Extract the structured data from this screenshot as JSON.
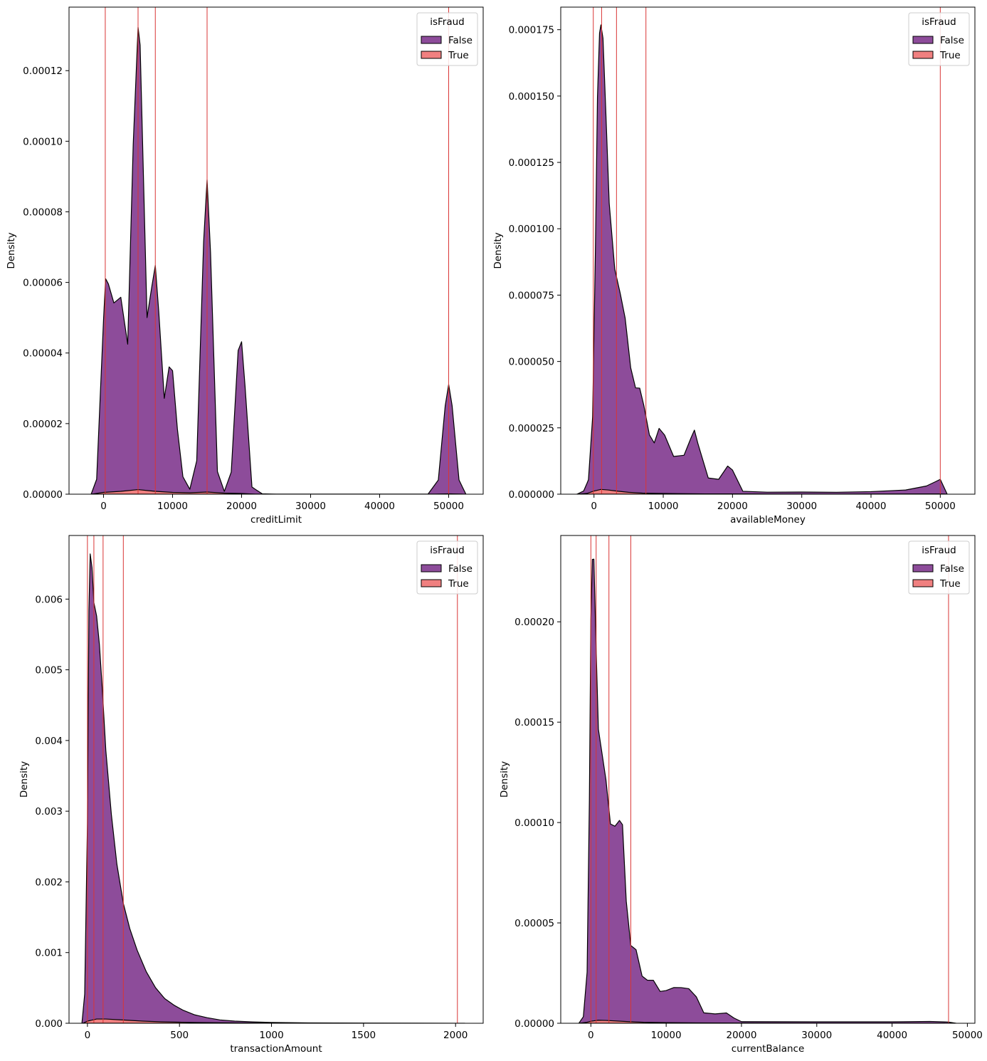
{
  "chart_data": [
    {
      "type": "area",
      "stacked": true,
      "xlabel": "creditLimit",
      "ylabel": "Density",
      "xlim": [
        -5000,
        55000
      ],
      "ylim": [
        0,
        0.000138
      ],
      "xticks": [
        0,
        10000,
        20000,
        30000,
        40000,
        50000
      ],
      "xtick_labels": [
        "0",
        "10000",
        "20000",
        "30000",
        "40000",
        "50000"
      ],
      "yticks": [
        0,
        2e-05,
        4e-05,
        6e-05,
        8e-05,
        0.0001,
        0.00012
      ],
      "ytick_labels": [
        "0.00000",
        "0.00002",
        "0.00004",
        "0.00006",
        "0.00008",
        "0.00010",
        "0.00012"
      ],
      "vlines": [
        250,
        5000,
        7500,
        15000,
        50000
      ],
      "legend": {
        "title": "isFraud",
        "placement": "top-right",
        "entries": [
          "False",
          "True"
        ]
      },
      "series": [
        {
          "name": "True",
          "x": [
            -1750,
            0,
            2500,
            5000,
            7500,
            10000,
            12500,
            15000,
            17500,
            20000,
            22000,
            48000,
            50000,
            52000
          ],
          "y": [
            0,
            5e-07,
            8e-07,
            1.3e-06,
            8e-07,
            5e-07,
            4e-07,
            6e-07,
            3e-07,
            2e-07,
            0,
            0,
            1e-07,
            0
          ]
        },
        {
          "name": "False",
          "x": [
            -1800,
            -1000,
            0,
            300,
            700,
            1500,
            2500,
            3500,
            4300,
            5000,
            5300,
            6300,
            7000,
            7500,
            8000,
            8800,
            9500,
            10000,
            10700,
            11500,
            12500,
            13500,
            14500,
            15000,
            15500,
            16500,
            17500,
            18500,
            19500,
            20000,
            20500,
            21500,
            23000,
            25000,
            47000,
            48500,
            49500,
            50000,
            50500,
            51500,
            52500
          ],
          "y": [
            0,
            4e-06,
            4.9e-05,
            6.05e-05,
            5.9e-05,
            5.35e-05,
            5.5e-05,
            4.15e-05,
            9.8e-05,
            0.000131,
            0.000126,
            4.9e-05,
            5.8e-05,
            6.4e-05,
            5.1e-05,
            2.65e-05,
            3.55e-05,
            3.45e-05,
            1.8e-05,
            4.5e-06,
            1e-06,
            9e-06,
            7.1e-05,
            8.85e-05,
            6.8e-05,
            6e-06,
            5e-07,
            6e-06,
            4.05e-05,
            4.3e-05,
            3.05e-05,
            2e-06,
            1e-07,
            0,
            0,
            4e-06,
            2.5e-05,
            3.1e-05,
            2.5e-05,
            4e-06,
            0
          ]
        }
      ]
    },
    {
      "type": "area",
      "stacked": true,
      "xlabel": "availableMoney",
      "ylabel": "Density",
      "xlim": [
        -4800,
        55000
      ],
      "ylim": [
        0,
        0.0001835
      ],
      "xticks": [
        0,
        10000,
        20000,
        30000,
        40000,
        50000
      ],
      "xtick_labels": [
        "0",
        "10000",
        "20000",
        "30000",
        "40000",
        "50000"
      ],
      "yticks": [
        0,
        2.5e-05,
        5e-05,
        7.5e-05,
        0.0001,
        0.000125,
        0.00015,
        0.000175
      ],
      "ytick_labels": [
        "0.000000",
        "0.000025",
        "0.000050",
        "0.000075",
        "0.000100",
        "0.000125",
        "0.000150",
        "0.000175"
      ],
      "vlines": [
        -100,
        1100,
        3250,
        7500,
        50000
      ],
      "legend": {
        "title": "isFraud",
        "placement": "top-right",
        "entries": [
          "False",
          "True"
        ]
      },
      "series": [
        {
          "name": "True",
          "x": [
            -2300,
            -1000,
            0,
            1000,
            2000,
            3500,
            5000,
            7000,
            9000,
            12000,
            16000,
            20000,
            30000,
            50000,
            51000
          ],
          "y": [
            0,
            3e-07,
            1.2e-06,
            1.8e-06,
            1.6e-06,
            1.1e-06,
            7e-07,
            4e-07,
            3e-07,
            2e-07,
            1e-07,
            1e-07,
            0,
            1e-07,
            0
          ]
        },
        {
          "name": "False",
          "x": [
            -2500,
            -1500,
            -800,
            -200,
            200,
            500,
            800,
            1000,
            1300,
            1700,
            2200,
            3000,
            3800,
            4500,
            5300,
            6000,
            6600,
            7200,
            8000,
            8700,
            9400,
            10200,
            11500,
            13000,
            14000,
            14500,
            15000,
            16500,
            18000,
            19300,
            20000,
            21500,
            25000,
            30000,
            35000,
            40000,
            45000,
            48000,
            49300,
            50000,
            51000
          ],
          "y": [
            0,
            1e-06,
            5e-06,
            2.8e-05,
            9e-05,
            0.000148,
            0.000172,
            0.000175,
            0.00017,
            0.000143,
            0.000108,
            8.35e-05,
            7.45e-05,
            6.55e-05,
            4.7e-05,
            3.95e-05,
            3.95e-05,
            3.3e-05,
            2.2e-05,
            1.9e-05,
            2.45e-05,
            2.2e-05,
            1.4e-05,
            1.45e-05,
            2.1e-05,
            2.4e-05,
            1.9e-05,
            6e-06,
            5.5e-06,
            1.05e-05,
            9e-06,
            1e-06,
            7e-07,
            8e-07,
            7e-07,
            9e-07,
            1.5e-06,
            3e-06,
            4.6e-06,
            5.5e-06,
            0
          ]
        }
      ]
    },
    {
      "type": "area",
      "stacked": true,
      "xlabel": "transactionAmount",
      "ylabel": "Density",
      "xlim": [
        -100,
        2150
      ],
      "ylim": [
        0,
        0.0069
      ],
      "xticks": [
        0,
        500,
        1000,
        1500,
        2000
      ],
      "xtick_labels": [
        "0",
        "500",
        "1000",
        "1500",
        "2000"
      ],
      "yticks": [
        0,
        0.001,
        0.002,
        0.003,
        0.004,
        0.005,
        0.006
      ],
      "ytick_labels": [
        "0.000",
        "0.001",
        "0.002",
        "0.003",
        "0.004",
        "0.005",
        "0.006"
      ],
      "vlines": [
        0,
        35,
        85,
        195,
        2010
      ],
      "legend": {
        "title": "isFraud",
        "placement": "top-right",
        "entries": [
          "False",
          "True"
        ]
      },
      "series": [
        {
          "name": "True",
          "x": [
            -25,
            0,
            50,
            100,
            200,
            300,
            400,
            500,
            600,
            800,
            1000,
            1200
          ],
          "y": [
            0,
            3e-05,
            6e-05,
            6e-05,
            4.5e-05,
            3e-05,
            2e-05,
            1.5e-05,
            1e-05,
            5e-06,
            2e-06,
            0
          ]
        },
        {
          "name": "False",
          "x": [
            -30,
            -15,
            0,
            8,
            15,
            25,
            35,
            50,
            65,
            80,
            100,
            130,
            160,
            195,
            230,
            270,
            320,
            370,
            420,
            470,
            520,
            580,
            650,
            720,
            800,
            900,
            1000,
            1200,
            1500,
            1800,
            2050
          ],
          "y": [
            0,
            0.0004,
            0.0028,
            0.0058,
            0.0066,
            0.0064,
            0.0059,
            0.0057,
            0.0053,
            0.0047,
            0.0038,
            0.0029,
            0.0022,
            0.00165,
            0.0013,
            0.001,
            0.0007,
            0.00048,
            0.00033,
            0.00024,
            0.00017,
            0.00011,
            7e-05,
            4e-05,
            2.5e-05,
            1.5e-05,
            1e-05,
            5e-06,
            3e-06,
            2e-06,
            0
          ]
        }
      ]
    },
    {
      "type": "area",
      "stacked": true,
      "xlabel": "currentBalance",
      "ylabel": "Density",
      "xlim": [
        -4000,
        51000
      ],
      "ylim": [
        0,
        0.000243
      ],
      "xticks": [
        0,
        10000,
        20000,
        30000,
        40000,
        50000
      ],
      "xtick_labels": [
        "0",
        "10000",
        "20000",
        "30000",
        "40000",
        "50000"
      ],
      "yticks": [
        0,
        5e-05,
        0.0001,
        0.00015,
        0.0002
      ],
      "ytick_labels": [
        "0.00000",
        "0.00005",
        "0.00010",
        "0.00015",
        "0.00020"
      ],
      "vlines": [
        0,
        700,
        2400,
        5300,
        47500
      ],
      "legend": {
        "title": "isFraud",
        "placement": "top-right",
        "entries": [
          "False",
          "True"
        ]
      },
      "series": [
        {
          "name": "True",
          "x": [
            -1500,
            -500,
            0,
            1000,
            2000,
            3500,
            5000,
            7000,
            10000,
            14000,
            20000,
            30000,
            47000
          ],
          "y": [
            0,
            5e-07,
            1e-06,
            1.5e-06,
            1.4e-06,
            1.1e-06,
            8e-07,
            5e-07,
            3e-07,
            2e-07,
            1e-07,
            0,
            0
          ]
        },
        {
          "name": "False",
          "x": [
            -1600,
            -1000,
            -500,
            -200,
            0,
            200,
            400,
            700,
            1000,
            1400,
            2000,
            2600,
            3200,
            3800,
            4200,
            4700,
            5300,
            6000,
            6800,
            7500,
            8300,
            9200,
            10000,
            11000,
            12000,
            13000,
            14000,
            15000,
            16500,
            18000,
            19000,
            20000,
            25000,
            30000,
            35000,
            40000,
            45000,
            47500,
            48500
          ],
          "y": [
            0,
            3e-06,
            2.5e-05,
            0.00011,
            0.0002,
            0.00023,
            0.00023,
            0.000185,
            0.000145,
            0.000135,
            0.00012,
            9.8e-05,
            9.7e-05,
            0.0001,
            9.8e-05,
            6e-05,
            3.8e-05,
            3.6e-05,
            2.3e-05,
            2.1e-05,
            2.1e-05,
            1.55e-05,
            1.6e-05,
            1.75e-05,
            1.75e-05,
            1.7e-05,
            1.3e-05,
            5e-06,
            4.5e-06,
            5e-06,
            2.5e-06,
            7e-07,
            7e-07,
            7e-07,
            7e-07,
            7e-07,
            9e-07,
            6e-07,
            0
          ]
        }
      ]
    }
  ],
  "colors": {
    "false_fill": "#8d4c9a",
    "true_fill": "#f08080",
    "outline": "#000000",
    "vline": "#d93535",
    "axes": "#000000"
  }
}
